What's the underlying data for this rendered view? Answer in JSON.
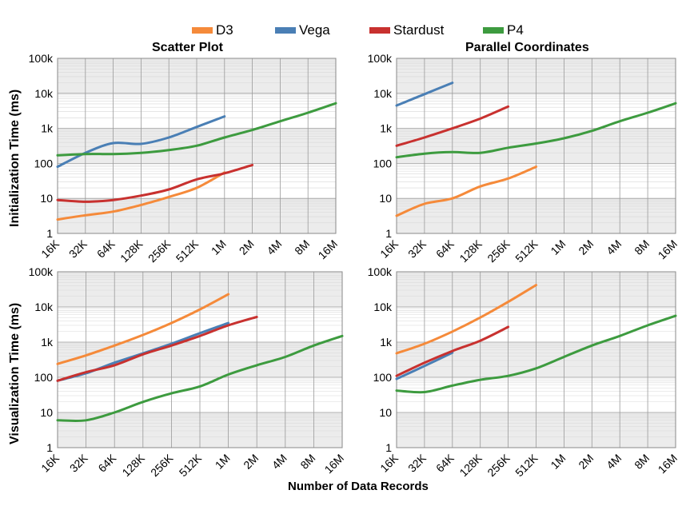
{
  "legend": [
    {
      "name": "D3",
      "color": "#f58a3a"
    },
    {
      "name": "Vega",
      "color": "#4a7fb5"
    },
    {
      "name": "Stardust",
      "color": "#c8312f"
    },
    {
      "name": "P4",
      "color": "#3d9b3f"
    }
  ],
  "shared_x_label": "Number of Data Records",
  "row_y_labels": [
    "Initialization Time (ms)",
    "Visualization Time (ms)"
  ],
  "chart_data": [
    {
      "type": "line",
      "title": "Scatter Plot",
      "ylabel": "Initialization Time (ms)",
      "yscale": "log",
      "ylim": [
        1,
        100000
      ],
      "yticks": [
        "1",
        "10",
        "100",
        "1k",
        "10k",
        "100k"
      ],
      "categories": [
        "16K",
        "32K",
        "64K",
        "128K",
        "256K",
        "512K",
        "1M",
        "2M",
        "4M",
        "8M",
        "16M"
      ],
      "grid": true,
      "series": [
        {
          "name": "D3",
          "color": "#f58a3a",
          "values": [
            2.5,
            3.3,
            4.2,
            6.5,
            11,
            20,
            55,
            null,
            null,
            null,
            null
          ]
        },
        {
          "name": "Vega",
          "color": "#4a7fb5",
          "values": [
            80,
            200,
            380,
            360,
            550,
            1100,
            2200,
            null,
            null,
            null,
            null
          ]
        },
        {
          "name": "Stardust",
          "color": "#c8312f",
          "values": [
            9,
            8,
            9,
            12,
            18,
            35,
            52,
            90,
            null,
            null,
            null
          ]
        },
        {
          "name": "P4",
          "color": "#3d9b3f",
          "values": [
            170,
            185,
            185,
            200,
            240,
            320,
            550,
            900,
            1600,
            2800,
            5200
          ]
        }
      ]
    },
    {
      "type": "line",
      "title": "Parallel Coordinates",
      "ylabel": "Initialization Time (ms)",
      "yscale": "log",
      "ylim": [
        1,
        100000
      ],
      "yticks": [
        "1",
        "10",
        "100",
        "1k",
        "10k",
        "100k"
      ],
      "categories": [
        "16K",
        "32K",
        "64K",
        "128K",
        "256K",
        "512K",
        "1M",
        "2M",
        "4M",
        "8M",
        "16M"
      ],
      "grid": true,
      "series": [
        {
          "name": "D3",
          "color": "#f58a3a",
          "values": [
            3.2,
            7,
            10,
            22,
            37,
            80,
            null,
            null,
            null,
            null,
            null
          ]
        },
        {
          "name": "Vega",
          "color": "#4a7fb5",
          "values": [
            4500,
            9500,
            20000,
            null,
            null,
            null,
            null,
            null,
            null,
            null,
            null
          ]
        },
        {
          "name": "Stardust",
          "color": "#c8312f",
          "values": [
            320,
            550,
            1000,
            1900,
            4200,
            null,
            null,
            null,
            null,
            null,
            null
          ]
        },
        {
          "name": "P4",
          "color": "#3d9b3f",
          "values": [
            150,
            190,
            210,
            200,
            280,
            370,
            520,
            850,
            1600,
            2800,
            5200
          ]
        }
      ]
    },
    {
      "type": "line",
      "title": "",
      "ylabel": "Visualization Time (ms)",
      "yscale": "log",
      "ylim": [
        1,
        100000
      ],
      "yticks": [
        "1",
        "10",
        "100",
        "1k",
        "10k",
        "100k"
      ],
      "categories": [
        "16K",
        "32K",
        "64K",
        "128K",
        "256K",
        "512K",
        "1M",
        "2M",
        "4M",
        "8M",
        "16M"
      ],
      "grid": true,
      "series": [
        {
          "name": "D3",
          "color": "#f58a3a",
          "values": [
            240,
            420,
            800,
            1600,
            3500,
            8500,
            23000,
            null,
            null,
            null,
            null
          ]
        },
        {
          "name": "Vega",
          "color": "#4a7fb5",
          "values": [
            80,
            130,
            260,
            480,
            900,
            1800,
            3500,
            null,
            null,
            null,
            null
          ]
        },
        {
          "name": "Stardust",
          "color": "#c8312f",
          "values": [
            80,
            140,
            220,
            450,
            800,
            1500,
            3000,
            5200,
            null,
            null,
            null
          ]
        },
        {
          "name": "P4",
          "color": "#3d9b3f",
          "values": [
            6,
            6,
            10,
            20,
            35,
            55,
            120,
            220,
            380,
            800,
            1500
          ]
        }
      ]
    },
    {
      "type": "line",
      "title": "",
      "ylabel": "Visualization Time (ms)",
      "yscale": "log",
      "ylim": [
        1,
        100000
      ],
      "yticks": [
        "1",
        "10",
        "100",
        "1k",
        "10k",
        "100k"
      ],
      "categories": [
        "16K",
        "32K",
        "64K",
        "128K",
        "256K",
        "512K",
        "1M",
        "2M",
        "4M",
        "8M",
        "16M"
      ],
      "grid": true,
      "series": [
        {
          "name": "D3",
          "color": "#f58a3a",
          "values": [
            480,
            900,
            2000,
            5000,
            14000,
            42000,
            null,
            null,
            null,
            null,
            null
          ]
        },
        {
          "name": "Vega",
          "color": "#4a7fb5",
          "values": [
            90,
            210,
            500,
            null,
            null,
            null,
            null,
            null,
            null,
            null,
            null
          ]
        },
        {
          "name": "Stardust",
          "color": "#c8312f",
          "values": [
            110,
            260,
            560,
            1100,
            2700,
            null,
            null,
            null,
            null,
            null,
            null
          ]
        },
        {
          "name": "P4",
          "color": "#3d9b3f",
          "values": [
            42,
            38,
            58,
            85,
            110,
            180,
            380,
            800,
            1500,
            3000,
            5600
          ]
        }
      ]
    }
  ]
}
